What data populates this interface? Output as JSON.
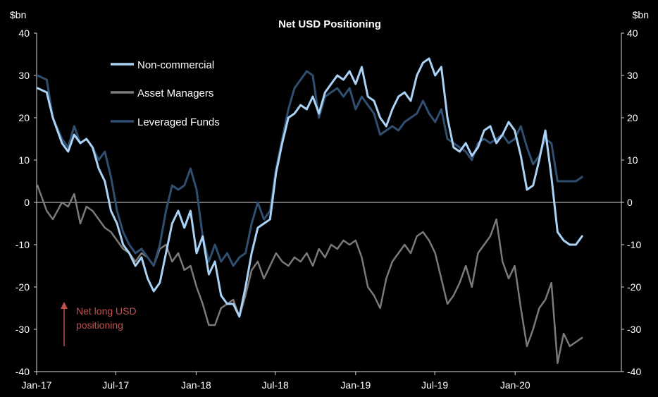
{
  "chart_data": {
    "type": "line",
    "title": "Net USD Positioning",
    "left_unit": "$bn",
    "right_unit": "$bn",
    "ylim": [
      -40,
      40
    ],
    "y_ticks": [
      40,
      30,
      20,
      10,
      0,
      -10,
      -20,
      -30,
      -40
    ],
    "x_range": [
      "2017-01-01",
      "2020-08-31"
    ],
    "x_ticks": [
      {
        "date": "2017-01-01",
        "label": "Jan-17"
      },
      {
        "date": "2017-07-01",
        "label": "Jul-17"
      },
      {
        "date": "2018-01-01",
        "label": "Jan-18"
      },
      {
        "date": "2018-07-01",
        "label": "Jul-18"
      },
      {
        "date": "2019-01-01",
        "label": "Jan-19"
      },
      {
        "date": "2019-07-01",
        "label": "Jul-19"
      },
      {
        "date": "2020-01-01",
        "label": "Jan-20"
      }
    ],
    "zero_line": true,
    "legend_position": "top-left",
    "annotation": {
      "line1": "Net long USD",
      "line2": "positioning",
      "color": "#c0504d",
      "arrow": "up"
    },
    "series": [
      {
        "name": "Non-commercial",
        "color": "#a9d2f5",
        "width": 3,
        "points": [
          [
            "2017-01-03",
            27
          ],
          [
            "2017-01-24",
            26
          ],
          [
            "2017-02-07",
            20
          ],
          [
            "2017-02-28",
            14
          ],
          [
            "2017-03-14",
            12
          ],
          [
            "2017-03-28",
            16
          ],
          [
            "2017-04-11",
            14
          ],
          [
            "2017-04-25",
            15
          ],
          [
            "2017-05-09",
            13
          ],
          [
            "2017-05-23",
            8
          ],
          [
            "2017-06-06",
            5
          ],
          [
            "2017-06-20",
            -2
          ],
          [
            "2017-07-04",
            -5
          ],
          [
            "2017-07-18",
            -10
          ],
          [
            "2017-08-01",
            -12
          ],
          [
            "2017-08-15",
            -15
          ],
          [
            "2017-08-29",
            -13
          ],
          [
            "2017-09-12",
            -18
          ],
          [
            "2017-09-26",
            -21
          ],
          [
            "2017-10-10",
            -19
          ],
          [
            "2017-10-24",
            -12
          ],
          [
            "2017-11-07",
            -5
          ],
          [
            "2017-11-21",
            -2
          ],
          [
            "2017-12-05",
            -6
          ],
          [
            "2017-12-19",
            -2
          ],
          [
            "2018-01-02",
            -12
          ],
          [
            "2018-01-16",
            -8
          ],
          [
            "2018-01-30",
            -17
          ],
          [
            "2018-02-13",
            -14
          ],
          [
            "2018-02-27",
            -22
          ],
          [
            "2018-03-13",
            -24
          ],
          [
            "2018-03-27",
            -24
          ],
          [
            "2018-04-10",
            -27
          ],
          [
            "2018-04-24",
            -20
          ],
          [
            "2018-05-08",
            -12
          ],
          [
            "2018-05-22",
            -6
          ],
          [
            "2018-06-05",
            -5
          ],
          [
            "2018-06-19",
            -4
          ],
          [
            "2018-07-03",
            7
          ],
          [
            "2018-07-17",
            14
          ],
          [
            "2018-07-31",
            20
          ],
          [
            "2018-08-14",
            21
          ],
          [
            "2018-08-28",
            23
          ],
          [
            "2018-09-11",
            22
          ],
          [
            "2018-09-25",
            25
          ],
          [
            "2018-10-09",
            21
          ],
          [
            "2018-10-23",
            26
          ],
          [
            "2018-11-06",
            28
          ],
          [
            "2018-11-20",
            30
          ],
          [
            "2018-12-04",
            29
          ],
          [
            "2018-12-18",
            31
          ],
          [
            "2019-01-01",
            28
          ],
          [
            "2019-01-15",
            32
          ],
          [
            "2019-01-29",
            25
          ],
          [
            "2019-02-12",
            24
          ],
          [
            "2019-02-26",
            20
          ],
          [
            "2019-03-12",
            18
          ],
          [
            "2019-03-26",
            22
          ],
          [
            "2019-04-09",
            25
          ],
          [
            "2019-04-23",
            26
          ],
          [
            "2019-05-07",
            24
          ],
          [
            "2019-05-21",
            30
          ],
          [
            "2019-06-04",
            33
          ],
          [
            "2019-06-18",
            34
          ],
          [
            "2019-07-02",
            30
          ],
          [
            "2019-07-16",
            32
          ],
          [
            "2019-07-30",
            20
          ],
          [
            "2019-08-13",
            13
          ],
          [
            "2019-08-27",
            12
          ],
          [
            "2019-09-10",
            14
          ],
          [
            "2019-09-24",
            11
          ],
          [
            "2019-10-08",
            13
          ],
          [
            "2019-10-22",
            17
          ],
          [
            "2019-11-05",
            18
          ],
          [
            "2019-11-19",
            14
          ],
          [
            "2019-12-03",
            16
          ],
          [
            "2019-12-17",
            19
          ],
          [
            "2019-12-31",
            17
          ],
          [
            "2020-01-14",
            11
          ],
          [
            "2020-01-28",
            3
          ],
          [
            "2020-02-11",
            4
          ],
          [
            "2020-02-25",
            10
          ],
          [
            "2020-03-10",
            17
          ],
          [
            "2020-03-24",
            6
          ],
          [
            "2020-04-07",
            -7
          ],
          [
            "2020-04-21",
            -9
          ],
          [
            "2020-05-05",
            -10
          ],
          [
            "2020-05-19",
            -10
          ],
          [
            "2020-06-02",
            -8
          ]
        ]
      },
      {
        "name": "Asset Managers",
        "color": "#7a7a7a",
        "width": 2.5,
        "points": [
          [
            "2017-01-03",
            4
          ],
          [
            "2017-01-24",
            -2
          ],
          [
            "2017-02-07",
            -4
          ],
          [
            "2017-02-28",
            0
          ],
          [
            "2017-03-14",
            -1
          ],
          [
            "2017-03-28",
            2
          ],
          [
            "2017-04-11",
            -5
          ],
          [
            "2017-04-25",
            -1
          ],
          [
            "2017-05-09",
            -2
          ],
          [
            "2017-05-23",
            -4
          ],
          [
            "2017-06-06",
            -6
          ],
          [
            "2017-06-20",
            -7
          ],
          [
            "2017-07-04",
            -9
          ],
          [
            "2017-07-18",
            -11
          ],
          [
            "2017-08-01",
            -12
          ],
          [
            "2017-08-15",
            -14
          ],
          [
            "2017-08-29",
            -12
          ],
          [
            "2017-09-12",
            -13
          ],
          [
            "2017-09-26",
            -15
          ],
          [
            "2017-10-10",
            -11
          ],
          [
            "2017-10-24",
            -10
          ],
          [
            "2017-11-07",
            -14
          ],
          [
            "2017-11-21",
            -12
          ],
          [
            "2017-12-05",
            -16
          ],
          [
            "2017-12-19",
            -15
          ],
          [
            "2018-01-02",
            -20
          ],
          [
            "2018-01-16",
            -24
          ],
          [
            "2018-01-30",
            -29
          ],
          [
            "2018-02-13",
            -29
          ],
          [
            "2018-02-27",
            -25
          ],
          [
            "2018-03-13",
            -24
          ],
          [
            "2018-03-27",
            -23
          ],
          [
            "2018-04-10",
            -27
          ],
          [
            "2018-04-24",
            -22
          ],
          [
            "2018-05-08",
            -16
          ],
          [
            "2018-05-22",
            -14
          ],
          [
            "2018-06-05",
            -18
          ],
          [
            "2018-06-19",
            -15
          ],
          [
            "2018-07-03",
            -12
          ],
          [
            "2018-07-17",
            -14
          ],
          [
            "2018-07-31",
            -15
          ],
          [
            "2018-08-14",
            -13
          ],
          [
            "2018-08-28",
            -14
          ],
          [
            "2018-09-11",
            -12
          ],
          [
            "2018-09-25",
            -15
          ],
          [
            "2018-10-09",
            -11
          ],
          [
            "2018-10-23",
            -13
          ],
          [
            "2018-11-06",
            -10
          ],
          [
            "2018-11-20",
            -11
          ],
          [
            "2018-12-04",
            -9
          ],
          [
            "2018-12-18",
            -10
          ],
          [
            "2019-01-01",
            -9
          ],
          [
            "2019-01-15",
            -13
          ],
          [
            "2019-01-29",
            -20
          ],
          [
            "2019-02-12",
            -22
          ],
          [
            "2019-02-26",
            -25
          ],
          [
            "2019-03-12",
            -18
          ],
          [
            "2019-03-26",
            -14
          ],
          [
            "2019-04-09",
            -12
          ],
          [
            "2019-04-23",
            -10
          ],
          [
            "2019-05-07",
            -12
          ],
          [
            "2019-05-21",
            -8
          ],
          [
            "2019-06-04",
            -7
          ],
          [
            "2019-06-18",
            -9
          ],
          [
            "2019-07-02",
            -12
          ],
          [
            "2019-07-16",
            -18
          ],
          [
            "2019-07-30",
            -24
          ],
          [
            "2019-08-13",
            -22
          ],
          [
            "2019-08-27",
            -19
          ],
          [
            "2019-09-10",
            -15
          ],
          [
            "2019-09-24",
            -20
          ],
          [
            "2019-10-08",
            -12
          ],
          [
            "2019-10-22",
            -10
          ],
          [
            "2019-11-05",
            -8
          ],
          [
            "2019-11-19",
            -4
          ],
          [
            "2019-12-03",
            -14
          ],
          [
            "2019-12-17",
            -18
          ],
          [
            "2019-12-31",
            -15
          ],
          [
            "2020-01-14",
            -25
          ],
          [
            "2020-01-28",
            -34
          ],
          [
            "2020-02-11",
            -30
          ],
          [
            "2020-02-25",
            -25
          ],
          [
            "2020-03-10",
            -23
          ],
          [
            "2020-03-24",
            -19
          ],
          [
            "2020-04-07",
            -38
          ],
          [
            "2020-04-21",
            -31
          ],
          [
            "2020-05-05",
            -34
          ],
          [
            "2020-05-19",
            -33
          ],
          [
            "2020-06-02",
            -32
          ]
        ]
      },
      {
        "name": "Leveraged Funds",
        "color": "#2f4e70",
        "width": 3,
        "points": [
          [
            "2017-01-03",
            30
          ],
          [
            "2017-01-24",
            29
          ],
          [
            "2017-02-07",
            20
          ],
          [
            "2017-02-28",
            15
          ],
          [
            "2017-03-14",
            13
          ],
          [
            "2017-03-28",
            18
          ],
          [
            "2017-04-11",
            14
          ],
          [
            "2017-04-25",
            15
          ],
          [
            "2017-05-09",
            13
          ],
          [
            "2017-05-23",
            10
          ],
          [
            "2017-06-06",
            12
          ],
          [
            "2017-06-20",
            6
          ],
          [
            "2017-07-04",
            -2
          ],
          [
            "2017-07-18",
            -7
          ],
          [
            "2017-08-01",
            -10
          ],
          [
            "2017-08-15",
            -12
          ],
          [
            "2017-08-29",
            -11
          ],
          [
            "2017-09-12",
            -13
          ],
          [
            "2017-09-26",
            -15
          ],
          [
            "2017-10-10",
            -10
          ],
          [
            "2017-10-24",
            -2
          ],
          [
            "2017-11-07",
            4
          ],
          [
            "2017-11-21",
            3
          ],
          [
            "2017-12-05",
            4
          ],
          [
            "2017-12-19",
            8
          ],
          [
            "2018-01-02",
            3
          ],
          [
            "2018-01-16",
            -8
          ],
          [
            "2018-01-30",
            -14
          ],
          [
            "2018-02-13",
            -10
          ],
          [
            "2018-02-27",
            -14
          ],
          [
            "2018-03-13",
            -12
          ],
          [
            "2018-03-27",
            -15
          ],
          [
            "2018-04-10",
            -13
          ],
          [
            "2018-04-24",
            -12
          ],
          [
            "2018-05-08",
            -5
          ],
          [
            "2018-05-22",
            0
          ],
          [
            "2018-06-05",
            -4
          ],
          [
            "2018-06-19",
            -2
          ],
          [
            "2018-07-03",
            8
          ],
          [
            "2018-07-17",
            15
          ],
          [
            "2018-07-31",
            22
          ],
          [
            "2018-08-14",
            27
          ],
          [
            "2018-08-28",
            29
          ],
          [
            "2018-09-11",
            31
          ],
          [
            "2018-09-25",
            30
          ],
          [
            "2018-10-09",
            20
          ],
          [
            "2018-10-23",
            25
          ],
          [
            "2018-11-06",
            26
          ],
          [
            "2018-11-20",
            27
          ],
          [
            "2018-12-04",
            25
          ],
          [
            "2018-12-18",
            27
          ],
          [
            "2019-01-01",
            22
          ],
          [
            "2019-01-15",
            25
          ],
          [
            "2019-01-29",
            23
          ],
          [
            "2019-02-12",
            21
          ],
          [
            "2019-02-26",
            16
          ],
          [
            "2019-03-12",
            17
          ],
          [
            "2019-03-26",
            18
          ],
          [
            "2019-04-09",
            17
          ],
          [
            "2019-04-23",
            19
          ],
          [
            "2019-05-07",
            20
          ],
          [
            "2019-05-21",
            21
          ],
          [
            "2019-06-04",
            24
          ],
          [
            "2019-06-18",
            21
          ],
          [
            "2019-07-02",
            19
          ],
          [
            "2019-07-16",
            22
          ],
          [
            "2019-07-30",
            15
          ],
          [
            "2019-08-13",
            14
          ],
          [
            "2019-08-27",
            13
          ],
          [
            "2019-09-10",
            12
          ],
          [
            "2019-09-24",
            10
          ],
          [
            "2019-10-08",
            14
          ],
          [
            "2019-10-22",
            15
          ],
          [
            "2019-11-05",
            14
          ],
          [
            "2019-11-19",
            15
          ],
          [
            "2019-12-03",
            16
          ],
          [
            "2019-12-17",
            14
          ],
          [
            "2019-12-31",
            15
          ],
          [
            "2020-01-14",
            18
          ],
          [
            "2020-01-28",
            13
          ],
          [
            "2020-02-11",
            9
          ],
          [
            "2020-02-25",
            11
          ],
          [
            "2020-03-10",
            15
          ],
          [
            "2020-03-24",
            14
          ],
          [
            "2020-04-07",
            5
          ],
          [
            "2020-04-21",
            5
          ],
          [
            "2020-05-05",
            5
          ],
          [
            "2020-05-19",
            5
          ],
          [
            "2020-06-02",
            6
          ]
        ]
      }
    ]
  }
}
